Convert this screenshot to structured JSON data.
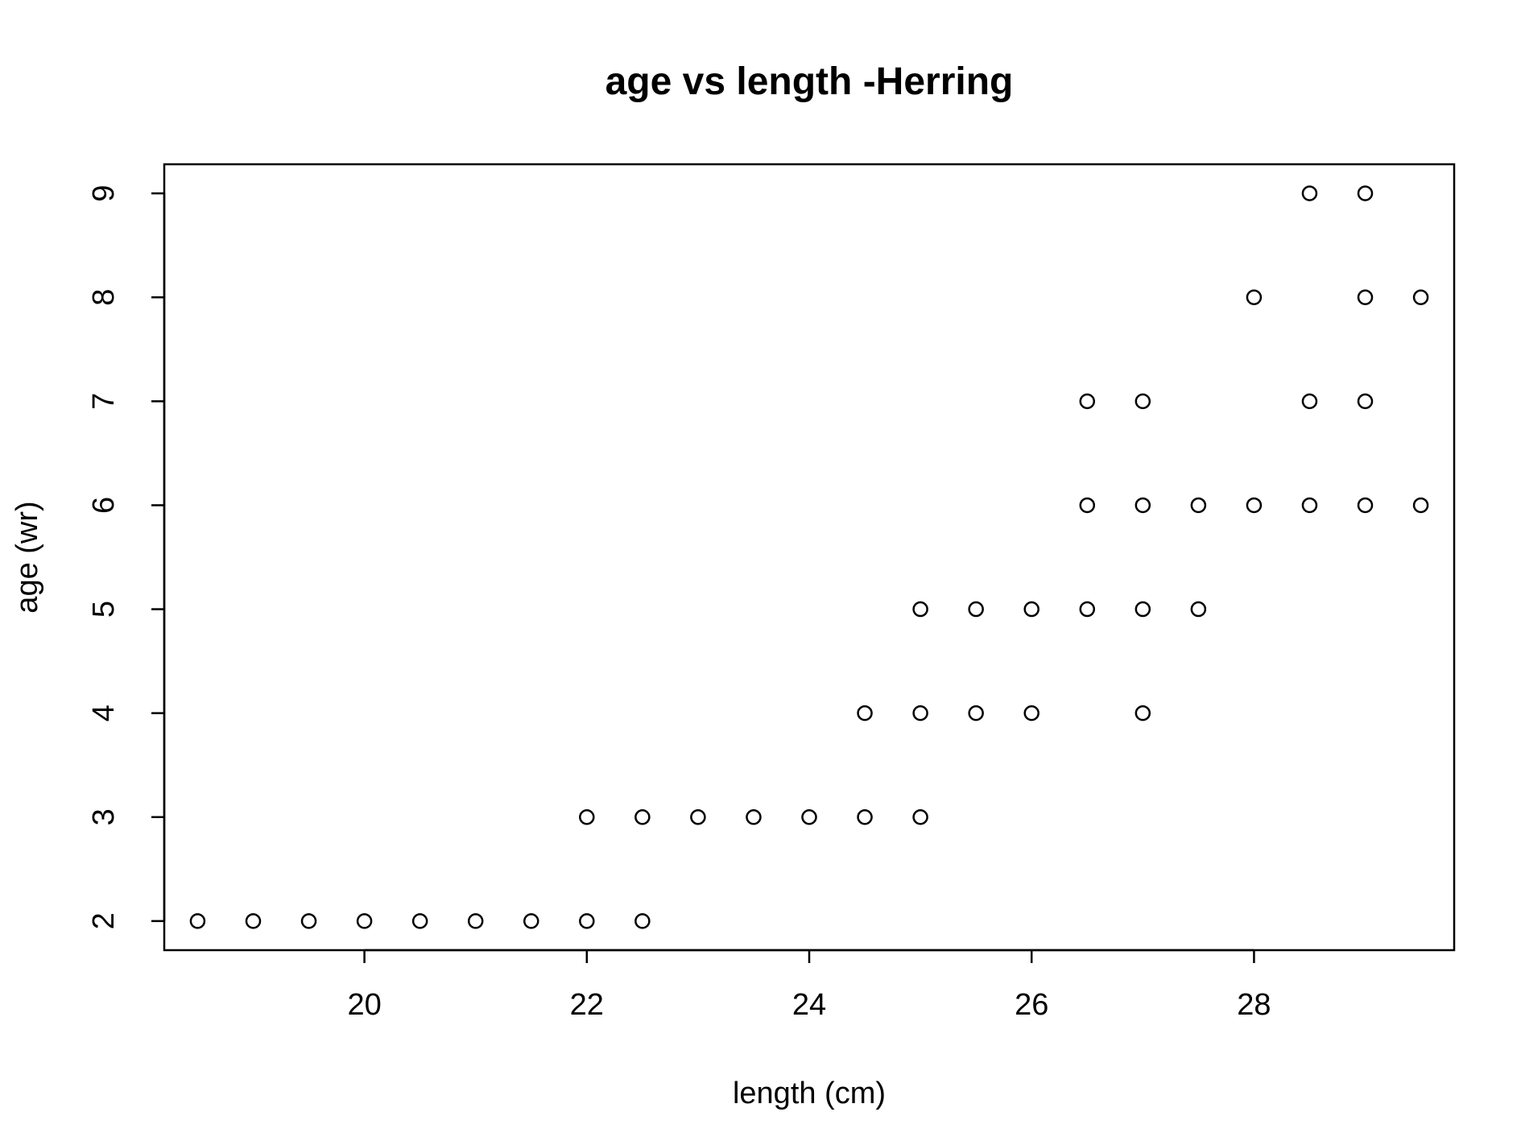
{
  "chart_data": {
    "type": "scatter",
    "title": "age vs length -Herring",
    "xlabel": "length (cm)",
    "ylabel": "age (wr)",
    "xlim": [
      18.2,
      29.8
    ],
    "ylim": [
      1.72,
      9.28
    ],
    "xticks": [
      20,
      22,
      24,
      26,
      28
    ],
    "yticks": [
      2,
      3,
      4,
      5,
      6,
      7,
      8,
      9
    ],
    "xtick_labels": [
      "20",
      "22",
      "24",
      "26",
      "28"
    ],
    "ytick_labels": [
      "2",
      "3",
      "4",
      "5",
      "6",
      "7",
      "8",
      "9"
    ],
    "grid": false,
    "marker": "open-circle",
    "color": "#000000",
    "points": [
      {
        "x": 18.5,
        "y": 2
      },
      {
        "x": 19,
        "y": 2
      },
      {
        "x": 19.5,
        "y": 2
      },
      {
        "x": 20,
        "y": 2
      },
      {
        "x": 20.5,
        "y": 2
      },
      {
        "x": 21,
        "y": 2
      },
      {
        "x": 21.5,
        "y": 2
      },
      {
        "x": 22,
        "y": 2
      },
      {
        "x": 22.5,
        "y": 2
      },
      {
        "x": 22,
        "y": 3
      },
      {
        "x": 22.5,
        "y": 3
      },
      {
        "x": 23,
        "y": 3
      },
      {
        "x": 23.5,
        "y": 3
      },
      {
        "x": 24,
        "y": 3
      },
      {
        "x": 24.5,
        "y": 3
      },
      {
        "x": 25,
        "y": 3
      },
      {
        "x": 24.5,
        "y": 4
      },
      {
        "x": 25,
        "y": 4
      },
      {
        "x": 25.5,
        "y": 4
      },
      {
        "x": 26,
        "y": 4
      },
      {
        "x": 27,
        "y": 4
      },
      {
        "x": 25,
        "y": 5
      },
      {
        "x": 25.5,
        "y": 5
      },
      {
        "x": 26,
        "y": 5
      },
      {
        "x": 26.5,
        "y": 5
      },
      {
        "x": 27,
        "y": 5
      },
      {
        "x": 27.5,
        "y": 5
      },
      {
        "x": 26.5,
        "y": 6
      },
      {
        "x": 27,
        "y": 6
      },
      {
        "x": 27.5,
        "y": 6
      },
      {
        "x": 28,
        "y": 6
      },
      {
        "x": 28.5,
        "y": 6
      },
      {
        "x": 29,
        "y": 6
      },
      {
        "x": 29.5,
        "y": 6
      },
      {
        "x": 26.5,
        "y": 7
      },
      {
        "x": 27,
        "y": 7
      },
      {
        "x": 28.5,
        "y": 7
      },
      {
        "x": 29,
        "y": 7
      },
      {
        "x": 28,
        "y": 8
      },
      {
        "x": 29,
        "y": 8
      },
      {
        "x": 29.5,
        "y": 8
      },
      {
        "x": 28.5,
        "y": 9
      },
      {
        "x": 29,
        "y": 9
      }
    ]
  }
}
